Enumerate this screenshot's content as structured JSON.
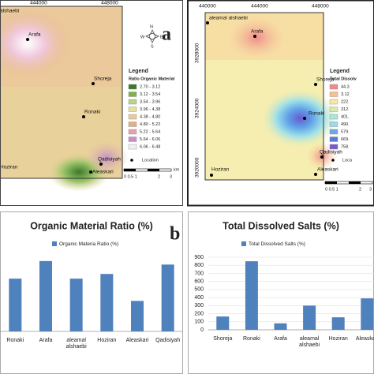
{
  "chart_data": [
    {
      "type": "bar",
      "title": "Organic Material Ratio  (%)",
      "categories": [
        "Ronaki",
        "Arafa",
        "aleamal alshaebi",
        "Hoziran",
        "Aleaskari",
        "Qadisiyah"
      ],
      "series": [
        {
          "name": "Organic Materia Ratio  (%)",
          "color": "#4f81bd",
          "values": [
            4.5,
            6.0,
            4.5,
            4.9,
            2.6,
            5.7
          ]
        }
      ],
      "ylim": [
        0,
        7
      ]
    },
    {
      "type": "bar",
      "title": "Total Dissolved Salts (%)",
      "categories": [
        "Shoreja",
        "Ronaki",
        "Arafa",
        "aleamal alshaebi",
        "Hoziran",
        "Aleaskari"
      ],
      "series": [
        {
          "name": "Total Dissolved Salts (%)",
          "color": "#4f81bd",
          "values": [
            165,
            850,
            80,
            300,
            155,
            390
          ]
        }
      ],
      "ylim": [
        0,
        900
      ],
      "yticks": [
        0,
        100,
        200,
        300,
        400,
        500,
        600,
        700,
        800,
        900
      ],
      "grid": true
    }
  ],
  "panels": [
    "a",
    "b"
  ],
  "map_a": {
    "xcoords": [
      "444000",
      "448000"
    ],
    "north": [
      "N",
      "E",
      "W",
      "S"
    ],
    "legend_title": "Legend",
    "legend_subtitle": "Ratio Organic Material",
    "classes": [
      "2.70 - 3.12",
      "3.12 - 3.54",
      "3.54 - 3.96",
      "3.96 - 4.38",
      "4.38 - 4.80",
      "4.80 - 5.22",
      "5.22 - 5.64",
      "5.64 - 6.06",
      "6.06 - 6.48"
    ],
    "location": "Location",
    "scale": [
      "0 0.5 1",
      "2",
      "3"
    ],
    "unit": "km",
    "places": [
      "alshaebi",
      "Arafa",
      "Shoreja",
      "Ronaki",
      "Qadisiyah",
      "Hoziran",
      "Aleaskari"
    ]
  },
  "map_b": {
    "xcoords": [
      "440000",
      "444000",
      "448000"
    ],
    "ycoords": [
      "3928000",
      "3924000",
      "3920000"
    ],
    "legend_title": "Legend",
    "legend_subtitle": "Total Dissolv",
    "classes": [
      "44.3",
      "3.12",
      "222.",
      "312.",
      "401.",
      "490.",
      "579.",
      "669.",
      "758."
    ],
    "location": "Loca",
    "scale": [
      "0 0.5 1",
      "2",
      "3"
    ],
    "places": [
      "aleamal alshaebi",
      "Arafa",
      "Shoreja",
      "Ronaki",
      "Qadisiyah",
      "Hoziran",
      "Aleaskari"
    ]
  }
}
